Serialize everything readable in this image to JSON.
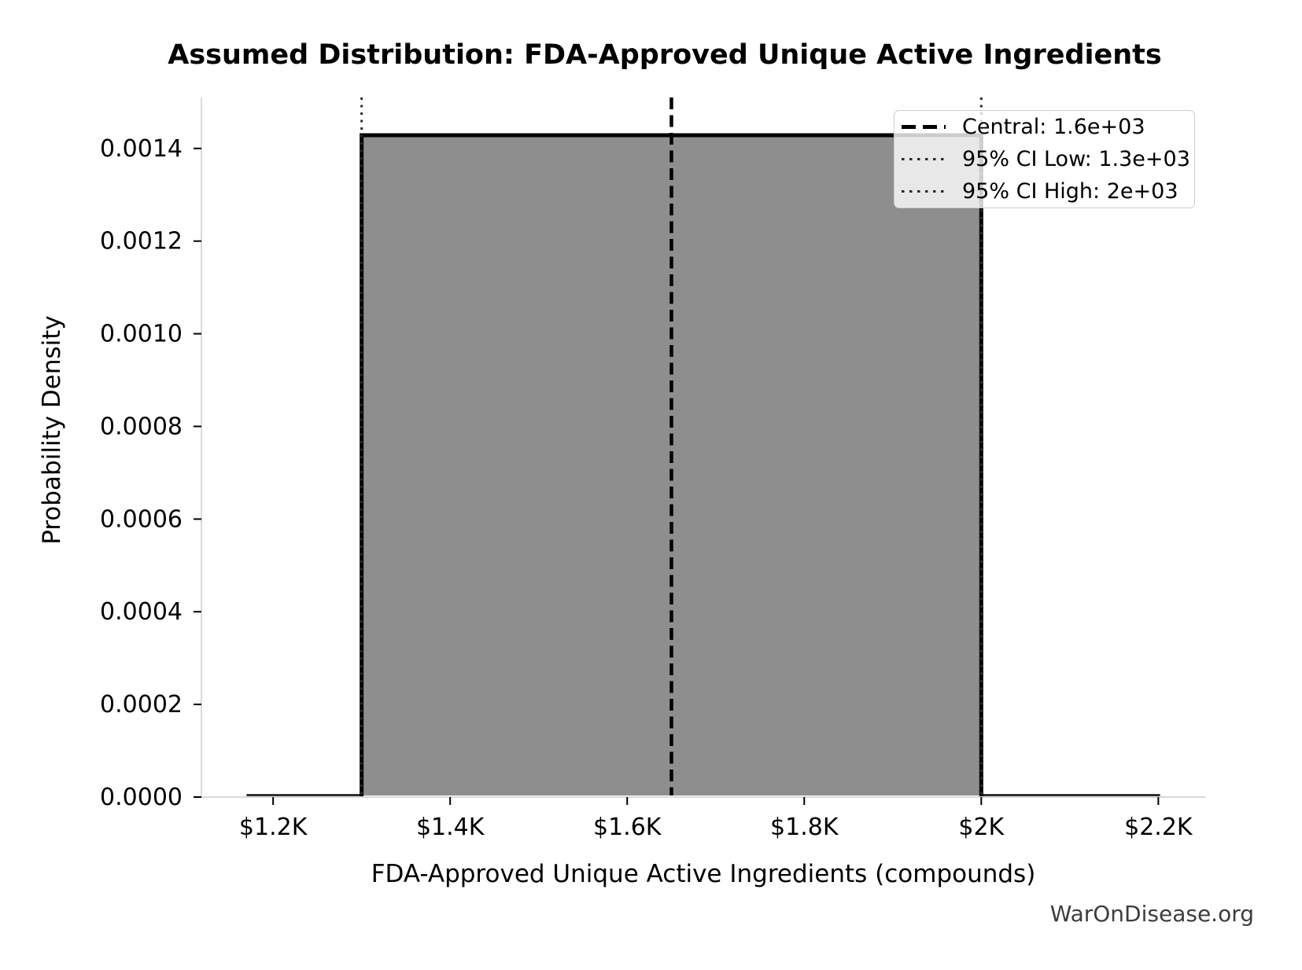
{
  "title": "Assumed Distribution: FDA-Approved Unique Active Ingredients",
  "watermark": "WarOnDisease.org",
  "axes": {
    "xlabel": "FDA-Approved Unique Active Ingredients (compounds)",
    "ylabel": "Probability Density"
  },
  "chart_data": {
    "type": "area",
    "subtype": "uniform_probability_density",
    "title": "Assumed Distribution: FDA-Approved Unique Active Ingredients",
    "xlabel": "FDA-Approved Unique Active Ingredients (compounds)",
    "ylabel": "Probability Density",
    "distribution": "uniform",
    "ci_low": 1300,
    "ci_high": 2000,
    "central": 1650,
    "density": 0.00142857,
    "curve_x_extent": [
      1170,
      2202
    ],
    "xlim": [
      1119,
      2253
    ],
    "ylim": [
      0,
      0.00151
    ],
    "grid": false,
    "legend_position": "upper right",
    "x_ticks": [
      {
        "value": 1200,
        "label": "$1.2K"
      },
      {
        "value": 1400,
        "label": "$1.4K"
      },
      {
        "value": 1600,
        "label": "$1.6K"
      },
      {
        "value": 1800,
        "label": "$1.8K"
      },
      {
        "value": 2000,
        "label": "$2K"
      },
      {
        "value": 2200,
        "label": "$2.2K"
      }
    ],
    "y_ticks": [
      {
        "value": 0.0,
        "label": "0.0000"
      },
      {
        "value": 0.0002,
        "label": "0.0002"
      },
      {
        "value": 0.0004,
        "label": "0.0004"
      },
      {
        "value": 0.0006,
        "label": "0.0006"
      },
      {
        "value": 0.0008,
        "label": "0.0008"
      },
      {
        "value": 0.001,
        "label": "0.0010"
      },
      {
        "value": 0.0012,
        "label": "0.0012"
      },
      {
        "value": 0.0014,
        "label": "0.0014"
      }
    ],
    "legend": [
      {
        "label": "Central: 1.6e+03",
        "style": "dashed"
      },
      {
        "label": "95% CI Low: 1.3e+03",
        "style": "dotted"
      },
      {
        "label": "95% CI High: 2e+03",
        "style": "dotted"
      }
    ],
    "colors": {
      "fill": "#8e8e8e",
      "edge": "#000000",
      "central_line": "#000000",
      "ci_line": "#2b2b2b",
      "spine": "#d9d9d9",
      "tick": "#000000",
      "text": "#000000",
      "watermark": "#3c3c3c",
      "legend_border": "#cccccc"
    }
  }
}
